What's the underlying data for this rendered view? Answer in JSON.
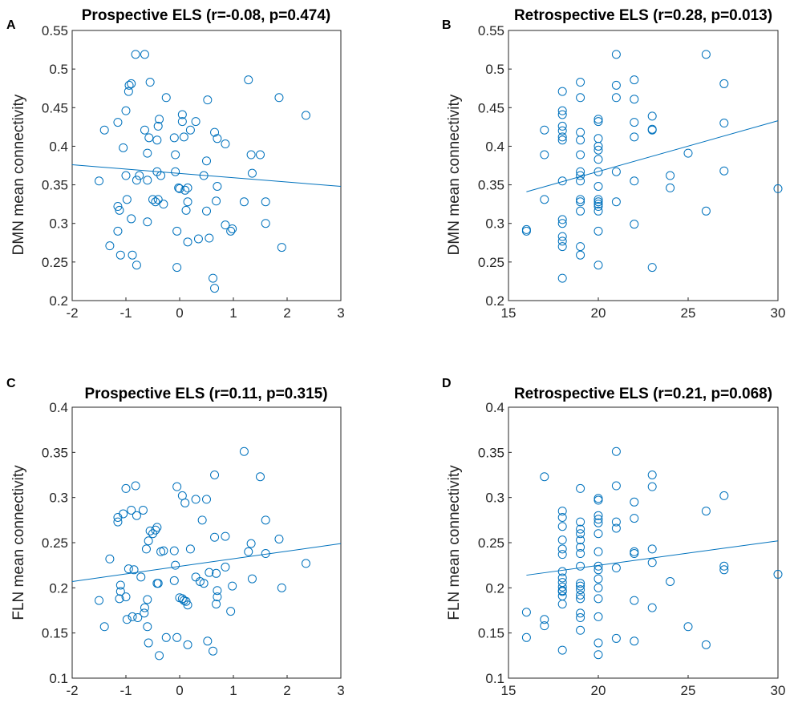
{
  "colors": {
    "series": "#0072BD",
    "axis": "#262626",
    "background": "#ffffff"
  },
  "chart_data": [
    {
      "panel": "A",
      "type": "scatter",
      "title": "Prospective ELS (r=-0.08, p=0.474)",
      "xlabel": "",
      "ylabel": "DMN mean connectivity",
      "xlim": [
        -2,
        3
      ],
      "ylim": [
        0.2,
        0.55
      ],
      "xticks": [
        -2,
        -1,
        0,
        1,
        2,
        3
      ],
      "yticks": [
        0.2,
        0.25,
        0.3,
        0.35,
        0.4,
        0.45,
        0.5,
        0.55
      ],
      "grid": false,
      "fit_line": {
        "x": [
          -2,
          3
        ],
        "y": [
          0.376,
          0.348
        ]
      },
      "points": [
        [
          -1.5,
          0.355
        ],
        [
          -1.4,
          0.421
        ],
        [
          -1.3,
          0.271
        ],
        [
          -1.15,
          0.431
        ],
        [
          -1.15,
          0.322
        ],
        [
          -1.15,
          0.29
        ],
        [
          -1.12,
          0.317
        ],
        [
          -1.1,
          0.259
        ],
        [
          -1.05,
          0.398
        ],
        [
          -1.0,
          0.446
        ],
        [
          -1.0,
          0.362
        ],
        [
          -0.98,
          0.331
        ],
        [
          -0.95,
          0.471
        ],
        [
          -0.94,
          0.479
        ],
        [
          -0.9,
          0.481
        ],
        [
          -0.9,
          0.306
        ],
        [
          -0.88,
          0.259
        ],
        [
          -0.82,
          0.519
        ],
        [
          -0.8,
          0.356
        ],
        [
          -0.8,
          0.246
        ],
        [
          -0.75,
          0.362
        ],
        [
          -0.65,
          0.519
        ],
        [
          -0.65,
          0.421
        ],
        [
          -0.6,
          0.391
        ],
        [
          -0.6,
          0.356
        ],
        [
          -0.6,
          0.302
        ],
        [
          -0.57,
          0.411
        ],
        [
          -0.55,
          0.483
        ],
        [
          -0.5,
          0.331
        ],
        [
          -0.45,
          0.328
        ],
        [
          -0.42,
          0.367
        ],
        [
          -0.42,
          0.408
        ],
        [
          -0.4,
          0.331
        ],
        [
          -0.4,
          0.426
        ],
        [
          -0.38,
          0.435
        ],
        [
          -0.35,
          0.362
        ],
        [
          -0.3,
          0.325
        ],
        [
          -0.25,
          0.463
        ],
        [
          -0.1,
          0.411
        ],
        [
          -0.08,
          0.389
        ],
        [
          -0.08,
          0.367
        ],
        [
          -0.05,
          0.29
        ],
        [
          -0.05,
          0.243
        ],
        [
          -0.02,
          0.346
        ],
        [
          0.0,
          0.345
        ],
        [
          0.05,
          0.432
        ],
        [
          0.05,
          0.441
        ],
        [
          0.08,
          0.412
        ],
        [
          0.1,
          0.343
        ],
        [
          0.12,
          0.317
        ],
        [
          0.15,
          0.346
        ],
        [
          0.15,
          0.328
        ],
        [
          0.15,
          0.276
        ],
        [
          0.2,
          0.421
        ],
        [
          0.3,
          0.432
        ],
        [
          0.35,
          0.28
        ],
        [
          0.45,
          0.362
        ],
        [
          0.5,
          0.381
        ],
        [
          0.5,
          0.316
        ],
        [
          0.52,
          0.46
        ],
        [
          0.55,
          0.281
        ],
        [
          0.62,
          0.229
        ],
        [
          0.65,
          0.216
        ],
        [
          0.65,
          0.418
        ],
        [
          0.68,
          0.329
        ],
        [
          0.7,
          0.348
        ],
        [
          0.7,
          0.41
        ],
        [
          0.85,
          0.403
        ],
        [
          0.85,
          0.298
        ],
        [
          0.95,
          0.29
        ],
        [
          0.98,
          0.293
        ],
        [
          1.2,
          0.328
        ],
        [
          1.28,
          0.486
        ],
        [
          1.33,
          0.389
        ],
        [
          1.35,
          0.365
        ],
        [
          1.5,
          0.389
        ],
        [
          1.6,
          0.328
        ],
        [
          1.6,
          0.3
        ],
        [
          1.85,
          0.463
        ],
        [
          1.9,
          0.269
        ],
        [
          2.35,
          0.44
        ]
      ]
    },
    {
      "panel": "B",
      "type": "scatter",
      "title": "Retrospective ELS (r=0.28, p=0.013)",
      "xlabel": "",
      "ylabel": "DMN mean connectivity",
      "xlim": [
        15,
        30
      ],
      "ylim": [
        0.2,
        0.55
      ],
      "xticks": [
        15,
        20,
        25,
        30
      ],
      "yticks": [
        0.2,
        0.25,
        0.3,
        0.35,
        0.4,
        0.45,
        0.5,
        0.55
      ],
      "grid": false,
      "fit_line": {
        "x": [
          16,
          30
        ],
        "y": [
          0.341,
          0.433
        ]
      },
      "points": [
        [
          16,
          0.292
        ],
        [
          16,
          0.29
        ],
        [
          17,
          0.421
        ],
        [
          17,
          0.389
        ],
        [
          17,
          0.331
        ],
        [
          18,
          0.471
        ],
        [
          18,
          0.446
        ],
        [
          18,
          0.441
        ],
        [
          18,
          0.426
        ],
        [
          18,
          0.42
        ],
        [
          18,
          0.412
        ],
        [
          18,
          0.408
        ],
        [
          18,
          0.355
        ],
        [
          18,
          0.305
        ],
        [
          18,
          0.3
        ],
        [
          18,
          0.283
        ],
        [
          18,
          0.277
        ],
        [
          18,
          0.27
        ],
        [
          18,
          0.229
        ],
        [
          19,
          0.483
        ],
        [
          19,
          0.463
        ],
        [
          19,
          0.418
        ],
        [
          19,
          0.408
        ],
        [
          19,
          0.389
        ],
        [
          19,
          0.367
        ],
        [
          19,
          0.362
        ],
        [
          19,
          0.355
        ],
        [
          19,
          0.331
        ],
        [
          19,
          0.328
        ],
        [
          19,
          0.316
        ],
        [
          19,
          0.27
        ],
        [
          19,
          0.259
        ],
        [
          20,
          0.435
        ],
        [
          20,
          0.432
        ],
        [
          20,
          0.41
        ],
        [
          20,
          0.4
        ],
        [
          20,
          0.395
        ],
        [
          20,
          0.383
        ],
        [
          20,
          0.367
        ],
        [
          20,
          0.348
        ],
        [
          20,
          0.331
        ],
        [
          20,
          0.328
        ],
        [
          20,
          0.325
        ],
        [
          20,
          0.322
        ],
        [
          20,
          0.316
        ],
        [
          20,
          0.29
        ],
        [
          20,
          0.246
        ],
        [
          21,
          0.519
        ],
        [
          21,
          0.479
        ],
        [
          21,
          0.463
        ],
        [
          21,
          0.367
        ],
        [
          21,
          0.328
        ],
        [
          22,
          0.486
        ],
        [
          22,
          0.461
        ],
        [
          22,
          0.431
        ],
        [
          22,
          0.412
        ],
        [
          22,
          0.355
        ],
        [
          22,
          0.299
        ],
        [
          23,
          0.439
        ],
        [
          23,
          0.422
        ],
        [
          23,
          0.421
        ],
        [
          23,
          0.243
        ],
        [
          24,
          0.362
        ],
        [
          24,
          0.346
        ],
        [
          25,
          0.391
        ],
        [
          26,
          0.519
        ],
        [
          26,
          0.316
        ],
        [
          27,
          0.481
        ],
        [
          27,
          0.43
        ],
        [
          27,
          0.368
        ],
        [
          30,
          0.345
        ]
      ]
    },
    {
      "panel": "C",
      "type": "scatter",
      "title": "Prospective ELS (r=0.11, p=0.315)",
      "xlabel": "",
      "ylabel": "FLN mean connectivity",
      "xlim": [
        -2,
        3
      ],
      "ylim": [
        0.1,
        0.4
      ],
      "xticks": [
        -2,
        -1,
        0,
        1,
        2,
        3
      ],
      "yticks": [
        0.1,
        0.15,
        0.2,
        0.25,
        0.3,
        0.35,
        0.4
      ],
      "grid": false,
      "fit_line": {
        "x": [
          -2,
          3
        ],
        "y": [
          0.207,
          0.249
        ]
      },
      "points": [
        [
          -1.5,
          0.186
        ],
        [
          -1.4,
          0.157
        ],
        [
          -1.3,
          0.232
        ],
        [
          -1.15,
          0.278
        ],
        [
          -1.15,
          0.273
        ],
        [
          -1.12,
          0.188
        ],
        [
          -1.1,
          0.203
        ],
        [
          -1.1,
          0.196
        ],
        [
          -1.05,
          0.282
        ],
        [
          -1.0,
          0.31
        ],
        [
          -1.0,
          0.19
        ],
        [
          -0.98,
          0.165
        ],
        [
          -0.95,
          0.221
        ],
        [
          -0.9,
          0.286
        ],
        [
          -0.88,
          0.168
        ],
        [
          -0.85,
          0.22
        ],
        [
          -0.82,
          0.313
        ],
        [
          -0.8,
          0.28
        ],
        [
          -0.78,
          0.167
        ],
        [
          -0.72,
          0.212
        ],
        [
          -0.68,
          0.286
        ],
        [
          -0.66,
          0.172
        ],
        [
          -0.65,
          0.178
        ],
        [
          -0.62,
          0.243
        ],
        [
          -0.6,
          0.187
        ],
        [
          -0.6,
          0.157
        ],
        [
          -0.58,
          0.139
        ],
        [
          -0.58,
          0.252
        ],
        [
          -0.55,
          0.263
        ],
        [
          -0.5,
          0.26
        ],
        [
          -0.45,
          0.264
        ],
        [
          -0.42,
          0.267
        ],
        [
          -0.42,
          0.205
        ],
        [
          -0.4,
          0.205
        ],
        [
          -0.38,
          0.125
        ],
        [
          -0.35,
          0.24
        ],
        [
          -0.3,
          0.241
        ],
        [
          -0.25,
          0.145
        ],
        [
          -0.1,
          0.241
        ],
        [
          -0.1,
          0.208
        ],
        [
          -0.08,
          0.225
        ],
        [
          -0.05,
          0.145
        ],
        [
          -0.05,
          0.312
        ],
        [
          0.0,
          0.189
        ],
        [
          0.05,
          0.302
        ],
        [
          0.05,
          0.188
        ],
        [
          0.08,
          0.186
        ],
        [
          0.1,
          0.294
        ],
        [
          0.12,
          0.185
        ],
        [
          0.15,
          0.181
        ],
        [
          0.15,
          0.137
        ],
        [
          0.2,
          0.243
        ],
        [
          0.3,
          0.298
        ],
        [
          0.3,
          0.212
        ],
        [
          0.38,
          0.207
        ],
        [
          0.42,
          0.275
        ],
        [
          0.45,
          0.205
        ],
        [
          0.5,
          0.298
        ],
        [
          0.52,
          0.141
        ],
        [
          0.55,
          0.217
        ],
        [
          0.62,
          0.13
        ],
        [
          0.65,
          0.256
        ],
        [
          0.65,
          0.325
        ],
        [
          0.68,
          0.216
        ],
        [
          0.68,
          0.182
        ],
        [
          0.7,
          0.197
        ],
        [
          0.7,
          0.19
        ],
        [
          0.85,
          0.257
        ],
        [
          0.85,
          0.223
        ],
        [
          0.95,
          0.174
        ],
        [
          0.98,
          0.202
        ],
        [
          1.2,
          0.351
        ],
        [
          1.28,
          0.24
        ],
        [
          1.33,
          0.249
        ],
        [
          1.35,
          0.21
        ],
        [
          1.5,
          0.323
        ],
        [
          1.6,
          0.275
        ],
        [
          1.6,
          0.238
        ],
        [
          1.85,
          0.254
        ],
        [
          1.9,
          0.2
        ],
        [
          2.35,
          0.227
        ]
      ]
    },
    {
      "panel": "D",
      "type": "scatter",
      "title": "Retrospective ELS (r=0.21, p=0.068)",
      "xlabel": "",
      "ylabel": "FLN mean connectivity",
      "xlim": [
        15,
        30
      ],
      "ylim": [
        0.1,
        0.4
      ],
      "xticks": [
        15,
        20,
        25,
        30
      ],
      "yticks": [
        0.1,
        0.15,
        0.2,
        0.25,
        0.3,
        0.35,
        0.4
      ],
      "grid": false,
      "fit_line": {
        "x": [
          16,
          30
        ],
        "y": [
          0.214,
          0.252
        ]
      },
      "points": [
        [
          16,
          0.173
        ],
        [
          16,
          0.145
        ],
        [
          17,
          0.323
        ],
        [
          17,
          0.165
        ],
        [
          17,
          0.158
        ],
        [
          18,
          0.285
        ],
        [
          18,
          0.278
        ],
        [
          18,
          0.268
        ],
        [
          18,
          0.253
        ],
        [
          18,
          0.243
        ],
        [
          18,
          0.237
        ],
        [
          18,
          0.218
        ],
        [
          18,
          0.211
        ],
        [
          18,
          0.206
        ],
        [
          18,
          0.201
        ],
        [
          18,
          0.197
        ],
        [
          18,
          0.196
        ],
        [
          18,
          0.191
        ],
        [
          18,
          0.182
        ],
        [
          18,
          0.131
        ],
        [
          19,
          0.31
        ],
        [
          19,
          0.273
        ],
        [
          19,
          0.265
        ],
        [
          19,
          0.26
        ],
        [
          19,
          0.253
        ],
        [
          19,
          0.245
        ],
        [
          19,
          0.238
        ],
        [
          19,
          0.224
        ],
        [
          19,
          0.205
        ],
        [
          19,
          0.202
        ],
        [
          19,
          0.198
        ],
        [
          19,
          0.192
        ],
        [
          19,
          0.188
        ],
        [
          19,
          0.172
        ],
        [
          19,
          0.167
        ],
        [
          19,
          0.153
        ],
        [
          20,
          0.299
        ],
        [
          20,
          0.297
        ],
        [
          20,
          0.28
        ],
        [
          20,
          0.276
        ],
        [
          20,
          0.272
        ],
        [
          20,
          0.26
        ],
        [
          20,
          0.24
        ],
        [
          20,
          0.224
        ],
        [
          20,
          0.22
        ],
        [
          20,
          0.21
        ],
        [
          20,
          0.2
        ],
        [
          20,
          0.188
        ],
        [
          20,
          0.168
        ],
        [
          20,
          0.139
        ],
        [
          20,
          0.126
        ],
        [
          21,
          0.351
        ],
        [
          21,
          0.313
        ],
        [
          21,
          0.273
        ],
        [
          21,
          0.266
        ],
        [
          21,
          0.222
        ],
        [
          21,
          0.144
        ],
        [
          22,
          0.295
        ],
        [
          22,
          0.277
        ],
        [
          22,
          0.24
        ],
        [
          22,
          0.238
        ],
        [
          22,
          0.186
        ],
        [
          22,
          0.141
        ],
        [
          23,
          0.325
        ],
        [
          23,
          0.312
        ],
        [
          23,
          0.243
        ],
        [
          23,
          0.228
        ],
        [
          23,
          0.178
        ],
        [
          24,
          0.207
        ],
        [
          25,
          0.157
        ],
        [
          26,
          0.285
        ],
        [
          26,
          0.137
        ],
        [
          27,
          0.302
        ],
        [
          27,
          0.224
        ],
        [
          27,
          0.22
        ],
        [
          30,
          0.215
        ]
      ]
    }
  ]
}
